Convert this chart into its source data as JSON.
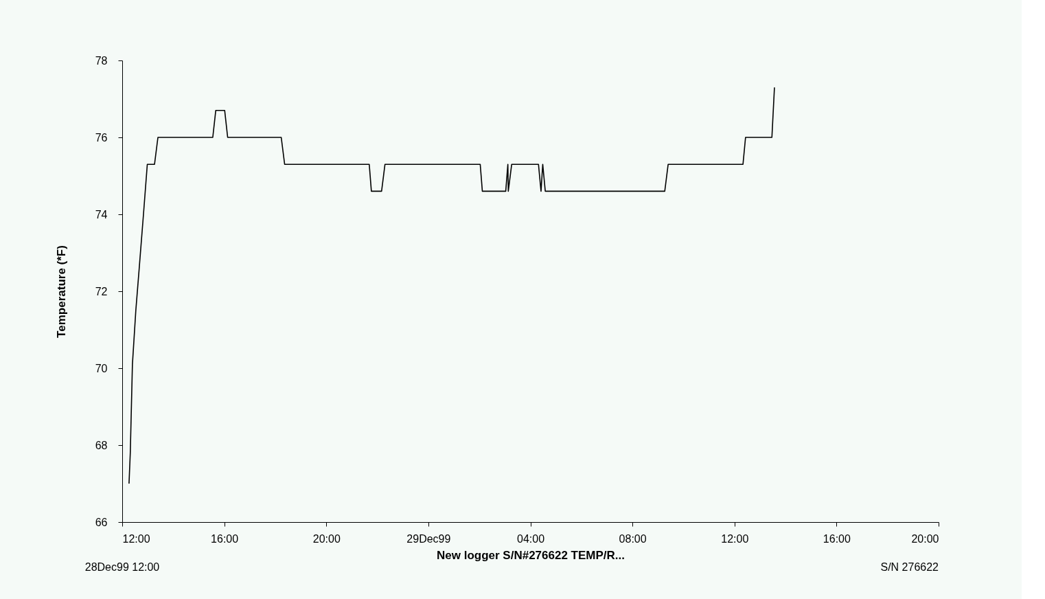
{
  "chart_data": {
    "type": "line",
    "ylabel": "Temperature (*F)",
    "xlabel": "New logger S/N#276622 TEMP/R...",
    "annotations": [
      "28Dec99 12:00",
      "S/N 276622"
    ],
    "x": [
      "1999-12-28T12:16",
      "1999-12-28T12:19",
      "1999-12-28T12:24",
      "1999-12-28T12:32",
      "1999-12-28T12:40",
      "1999-12-28T12:50",
      "1999-12-28T12:59",
      "1999-12-28T13:16",
      "1999-12-28T13:24",
      "1999-12-28T15:33",
      "1999-12-28T15:40",
      "1999-12-28T16:01",
      "1999-12-28T16:08",
      "1999-12-28T18:14",
      "1999-12-28T18:22",
      "1999-12-28T21:41",
      "1999-12-28T21:46",
      "1999-12-28T22:10",
      "1999-12-28T22:18",
      "1999-12-29T02:02",
      "1999-12-29T02:07",
      "1999-12-29T03:02",
      "1999-12-29T03:07",
      "1999-12-29T03:08",
      "1999-12-29T03:16",
      "1999-12-29T04:19",
      "1999-12-29T04:25",
      "1999-12-29T04:29",
      "1999-12-29T04:35",
      "1999-12-29T09:16",
      "1999-12-29T09:24",
      "1999-12-29T12:20",
      "1999-12-29T12:26",
      "1999-12-29T13:28",
      "1999-12-29T13:34"
    ],
    "series": [
      {
        "color": "#000000",
        "values": [
          67.0,
          67.8,
          70.1,
          71.5,
          72.6,
          74.0,
          75.3,
          75.3,
          76.0,
          76.0,
          76.7,
          76.7,
          76.0,
          76.0,
          75.3,
          75.3,
          74.6,
          74.6,
          75.3,
          75.3,
          74.6,
          74.6,
          75.3,
          74.6,
          75.3,
          75.3,
          74.6,
          75.3,
          74.6,
          74.6,
          75.3,
          75.3,
          76.0,
          76.0,
          77.3
        ]
      }
    ],
    "xlim": [
      "1999-12-28T12:00",
      "1999-12-29T20:00"
    ],
    "xticks": [
      {
        "value": "1999-12-28T12:00",
        "label": "12:00"
      },
      {
        "value": "1999-12-28T16:00",
        "label": "16:00"
      },
      {
        "value": "1999-12-28T20:00",
        "label": "20:00"
      },
      {
        "value": "1999-12-29T00:00",
        "label": "29Dec99"
      },
      {
        "value": "1999-12-29T04:00",
        "label": "04:00"
      },
      {
        "value": "1999-12-29T08:00",
        "label": "08:00"
      },
      {
        "value": "1999-12-29T12:00",
        "label": "12:00"
      },
      {
        "value": "1999-12-29T16:00",
        "label": "16:00"
      },
      {
        "value": "1999-12-29T20:00",
        "label": "20:00"
      }
    ],
    "ylim": [
      66,
      78
    ],
    "yticks": [
      66,
      68,
      70,
      72,
      74,
      76,
      78
    ],
    "grid": false,
    "marker": "none",
    "line_style": "solid"
  }
}
